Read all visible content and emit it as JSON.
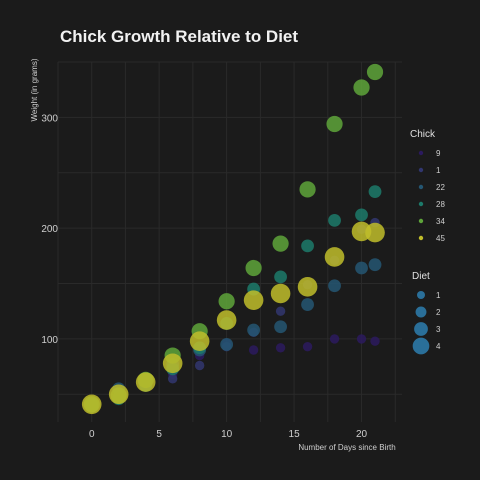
{
  "chart_data": {
    "type": "scatter",
    "title": "Chick Growth Relative to Diet",
    "xlabel": "Number of Days since Birth",
    "ylabel": "Weight (in grams)",
    "xlim": [
      -2.5,
      23
    ],
    "ylim": [
      25,
      350
    ],
    "x_ticks": [
      0,
      5,
      10,
      15,
      20
    ],
    "y_ticks": [
      100,
      200,
      300
    ],
    "grid": true,
    "colors": {
      "9": "#2b1a5e",
      "1": "#31366f",
      "22": "#245672",
      "28": "#1c7a6a",
      "34": "#5ea43a",
      "45": "#c0bd2a"
    },
    "diet_legend": {
      "title": "Diet",
      "entries": [
        {
          "label": "1",
          "diet": 1
        },
        {
          "label": "2",
          "diet": 2
        },
        {
          "label": "3",
          "diet": 3
        },
        {
          "label": "4",
          "diet": 4
        }
      ],
      "color": "#2a6f99"
    },
    "chick_legend": {
      "title": "Chick",
      "entries": [
        "9",
        "1",
        "22",
        "28",
        "34",
        "45"
      ]
    },
    "series": [
      {
        "name": "9",
        "diet": 1,
        "x": [
          0,
          2,
          4,
          6,
          8,
          10,
          12,
          14,
          16,
          18,
          20,
          21
        ],
        "y": [
          42,
          51,
          59,
          68,
          85,
          96,
          90,
          92,
          93,
          100,
          100,
          98
        ]
      },
      {
        "name": "1",
        "diet": 1,
        "x": [
          0,
          2,
          4,
          6,
          8,
          10,
          12,
          14,
          16,
          18,
          20,
          21
        ],
        "y": [
          42,
          51,
          59,
          64,
          76,
          93,
          106,
          125,
          149,
          171,
          199,
          205
        ]
      },
      {
        "name": "22",
        "diet": 2,
        "x": [
          0,
          2,
          4,
          6,
          8,
          10,
          12,
          14,
          16,
          18,
          20,
          21
        ],
        "y": [
          41,
          55,
          64,
          77,
          90,
          95,
          108,
          111,
          131,
          148,
          164,
          167
        ]
      },
      {
        "name": "28",
        "diet": 2,
        "x": [
          0,
          2,
          4,
          6,
          8,
          10,
          12,
          14,
          16,
          18,
          20,
          21
        ],
        "y": [
          39,
          46,
          58,
          73,
          92,
          114,
          145,
          156,
          184,
          207,
          212,
          233
        ]
      },
      {
        "name": "34",
        "diet": 3,
        "x": [
          0,
          2,
          4,
          6,
          8,
          10,
          12,
          14,
          16,
          18,
          20,
          21
        ],
        "y": [
          41,
          49,
          63,
          85,
          107,
          134,
          164,
          186,
          235,
          294,
          327,
          341
        ]
      },
      {
        "name": "45",
        "diet": 4,
        "x": [
          0,
          2,
          4,
          6,
          8,
          10,
          12,
          14,
          16,
          18,
          20,
          21
        ],
        "y": [
          41,
          50,
          61,
          78,
          98,
          117,
          135,
          141,
          147,
          174,
          197,
          196
        ]
      }
    ]
  }
}
